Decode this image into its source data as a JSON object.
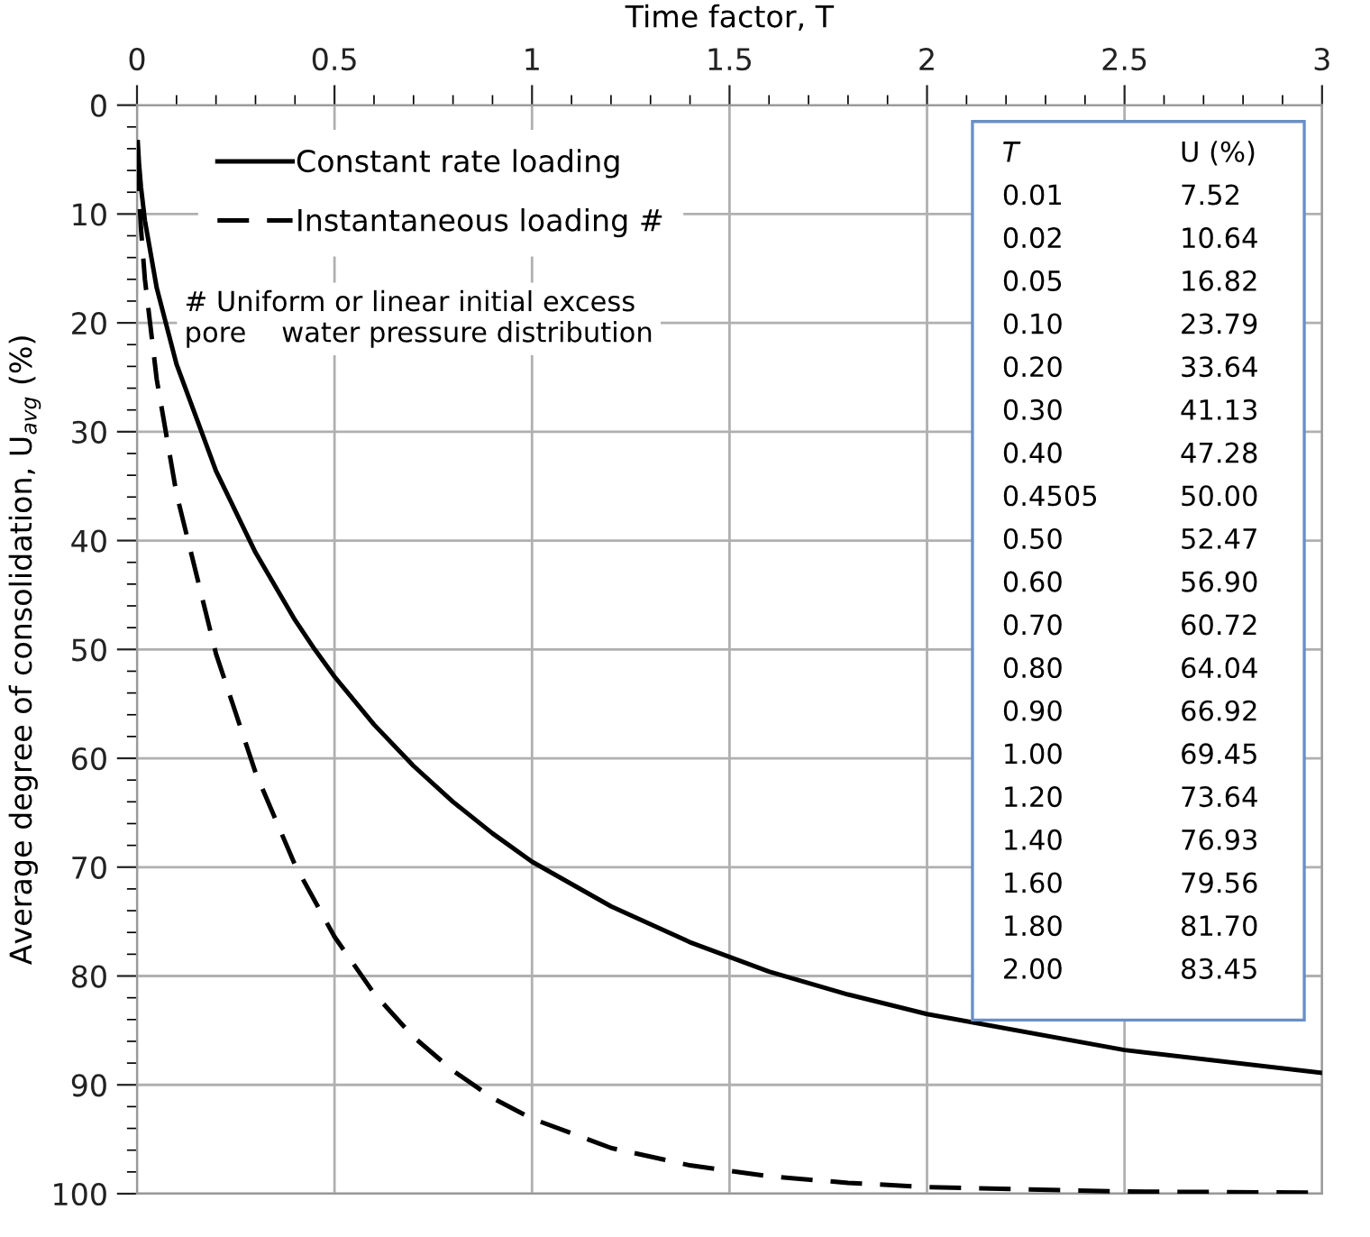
{
  "chart_data": {
    "type": "line",
    "xlabel": "Time factor, T",
    "ylabel": "Average degree of consolidation, U$_{avg}$ (%)",
    "xlim": [
      0,
      3
    ],
    "xticks": [
      0,
      0.5,
      1,
      1.5,
      2,
      2.5,
      3
    ],
    "ylim": [
      100,
      0
    ],
    "yticks": [
      0,
      10,
      20,
      30,
      40,
      50,
      60,
      70,
      80,
      90,
      100
    ],
    "grid": true,
    "legend": "top left",
    "annotations": [
      "# Uniform or linear initial excess\npore    water pressure distribution",
      "T",
      "U (%)",
      "0.01",
      "7.52",
      "0.02",
      "10.64",
      "0.05",
      "16.82",
      "0.10",
      "23.79",
      "0.20",
      "33.64",
      "0.30",
      "41.13",
      "0.40",
      "47.28",
      "0.4505",
      "50.00",
      "0.50",
      "52.47",
      "0.60",
      "56.90",
      "0.70",
      "60.72",
      "0.80",
      "64.04",
      "0.90",
      "66.92",
      "1.00",
      "69.45",
      "1.20",
      "73.64",
      "1.40",
      "76.93",
      "1.60",
      "79.56",
      "1.80",
      "81.70",
      "2.00",
      "83.45"
    ],
    "series": [
      {
        "name": "Constant rate loading",
        "color": "#000000",
        "line_style": "solid",
        "x": [
          0.002,
          0.005,
          0.01,
          0.02,
          0.05,
          0.1,
          0.2,
          0.3,
          0.4,
          0.45,
          0.5,
          0.6,
          0.7,
          0.8,
          0.9,
          1.0,
          1.2,
          1.4,
          1.6,
          1.8,
          2.0,
          2.5,
          3.0
        ],
        "values": [
          3.4,
          5.3,
          7.5,
          10.6,
          16.8,
          23.8,
          33.6,
          41.1,
          47.3,
          50.0,
          52.5,
          56.9,
          60.7,
          64.0,
          66.9,
          69.5,
          73.6,
          76.9,
          79.6,
          81.7,
          83.5,
          86.8,
          88.9
        ]
      },
      {
        "name": "Instantaneous loading #",
        "color": "#000000",
        "line_style": "dashed",
        "x": [
          0.002,
          0.005,
          0.01,
          0.02,
          0.05,
          0.1,
          0.2,
          0.3,
          0.4,
          0.5,
          0.6,
          0.7,
          0.8,
          0.9,
          1.0,
          1.2,
          1.4,
          1.6,
          1.8,
          2.0,
          2.5,
          3.0
        ],
        "values": [
          5.0,
          8.0,
          11.3,
          16.0,
          25.2,
          35.7,
          50.4,
          61.3,
          69.8,
          76.4,
          81.6,
          85.6,
          88.7,
          91.2,
          93.1,
          95.8,
          97.4,
          98.4,
          99.0,
          99.4,
          99.8,
          99.9
        ]
      }
    ]
  }
}
